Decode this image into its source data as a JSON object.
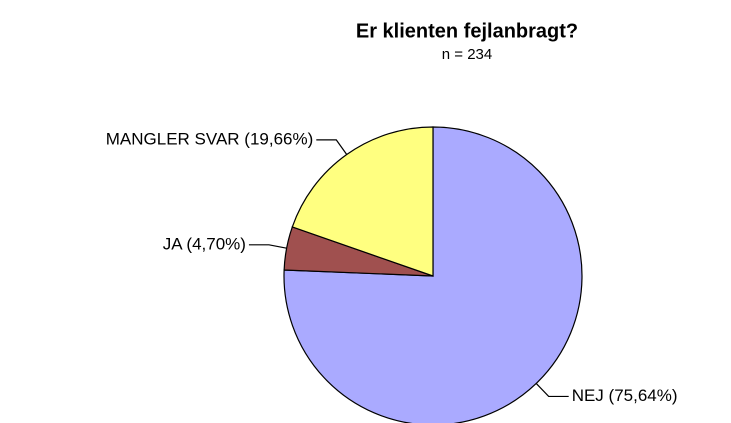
{
  "chart_data": {
    "type": "pie",
    "title": "Er klienten fejlanbragt?",
    "subtitle": "n = 234",
    "values": [
      75.64,
      4.7,
      19.66
    ],
    "value_labels": [
      "NEJ (75,64%)",
      "JA (4,70%)",
      "MANGLER SVAR (19,66%)"
    ],
    "colors": [
      "#aaaaff",
      "#a0504f",
      "#ffff80"
    ]
  }
}
